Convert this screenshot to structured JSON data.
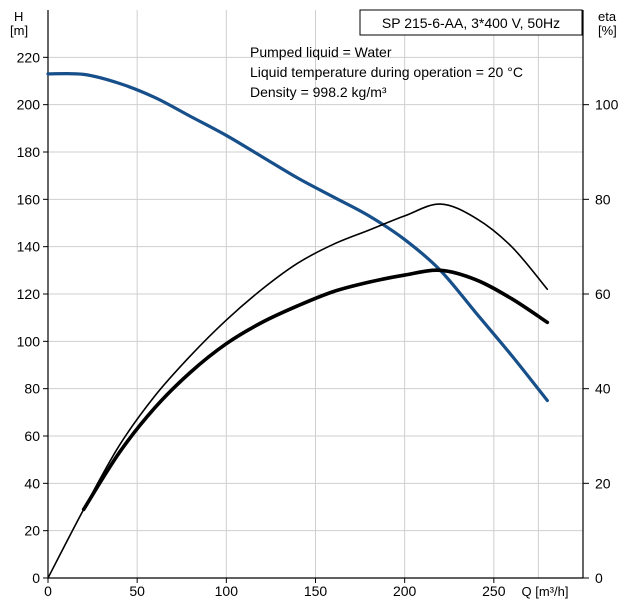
{
  "chart_data": {
    "type": "line",
    "title": "SP 215-6-AA, 3*400 V, 50Hz",
    "info_lines": [
      "Pumped liquid = Water",
      "Liquid temperature during operation = 20 °C",
      "Density = 998.2 kg/m³"
    ],
    "xlabel": "Q [m³/h]",
    "ylabel_left": "H\n[m]",
    "ylabel_right": "eta\n[%]",
    "xlim": [
      0,
      300
    ],
    "ylim_left": [
      0,
      240
    ],
    "ylim_right": [
      0,
      120
    ],
    "x_ticks": [
      0,
      50,
      100,
      150,
      200,
      250
    ],
    "y_ticks_left": [
      0,
      20,
      40,
      60,
      80,
      100,
      120,
      140,
      160,
      180,
      200,
      220
    ],
    "y_ticks_right": [
      0,
      20,
      40,
      60,
      80,
      100
    ],
    "grid": true,
    "colors": {
      "head": "#174f8a",
      "line": "#000000",
      "grid": "#cfcfcf"
    },
    "series": [
      {
        "axis": "left",
        "color": "#174f8a",
        "x": [
          0,
          20,
          40,
          60,
          80,
          100,
          120,
          140,
          160,
          180,
          200,
          220,
          240,
          260,
          280
        ],
        "values": [
          213,
          212.8,
          209,
          203,
          195,
          187,
          178,
          169,
          161,
          153,
          143,
          130,
          112,
          94,
          75
        ]
      },
      {
        "axis": "right",
        "color": "#000000",
        "x": [
          0,
          20,
          40,
          60,
          80,
          100,
          120,
          140,
          160,
          180,
          200,
          220,
          240,
          260,
          280
        ],
        "values": [
          0,
          14.5,
          28,
          38.5,
          47,
          54.5,
          61,
          66.5,
          70.5,
          73.5,
          76.5,
          79,
          76,
          70,
          61
        ]
      },
      {
        "axis": "right",
        "color": "#000000",
        "x": [
          20,
          40,
          60,
          80,
          100,
          120,
          140,
          160,
          180,
          200,
          220,
          240,
          260,
          280
        ],
        "values": [
          14.5,
          26.5,
          36,
          43.5,
          49.5,
          54,
          57.5,
          60.5,
          62.5,
          64,
          65,
          63,
          59,
          54
        ]
      }
    ]
  }
}
